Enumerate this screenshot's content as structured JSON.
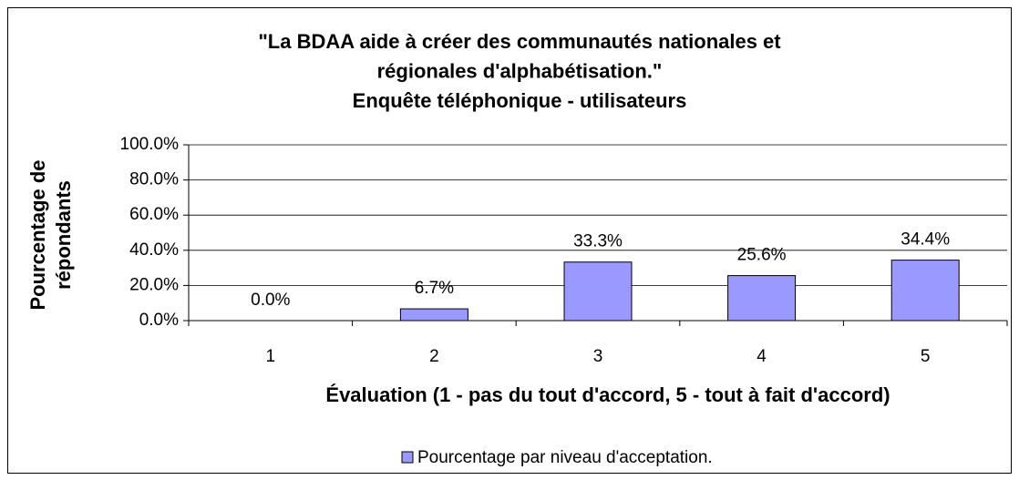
{
  "chart_data": {
    "type": "bar",
    "title": [
      "\"La BDAA aide à créer des communautés nationales et",
      "régionales d'alphabétisation.\"",
      "Enquête téléphonique - utilisateurs"
    ],
    "xlabel": "Évaluation (1 - pas du tout d'accord, 5 - tout à fait d'accord)",
    "ylabel": [
      "Pourcentage de",
      "répondants"
    ],
    "categories": [
      "1",
      "2",
      "3",
      "4",
      "5"
    ],
    "series": [
      {
        "name": "Pourcentage par niveau d'acceptation.",
        "color": "#9999ff",
        "values": [
          0.0,
          6.7,
          33.3,
          25.6,
          34.4
        ],
        "value_labels": [
          "0.0%",
          "6.7%",
          "33.3%",
          "25.6%",
          "34.4%"
        ]
      }
    ],
    "ylim": [
      0,
      100
    ],
    "yticks": [
      {
        "value": 0,
        "label": "0.0%"
      },
      {
        "value": 20,
        "label": "20.0%"
      },
      {
        "value": 40,
        "label": "40.0%"
      },
      {
        "value": 60,
        "label": "60.0%"
      },
      {
        "value": 80,
        "label": "80.0%"
      },
      {
        "value": 100,
        "label": "100.0%"
      }
    ],
    "grid": true,
    "legend": "bottom"
  }
}
